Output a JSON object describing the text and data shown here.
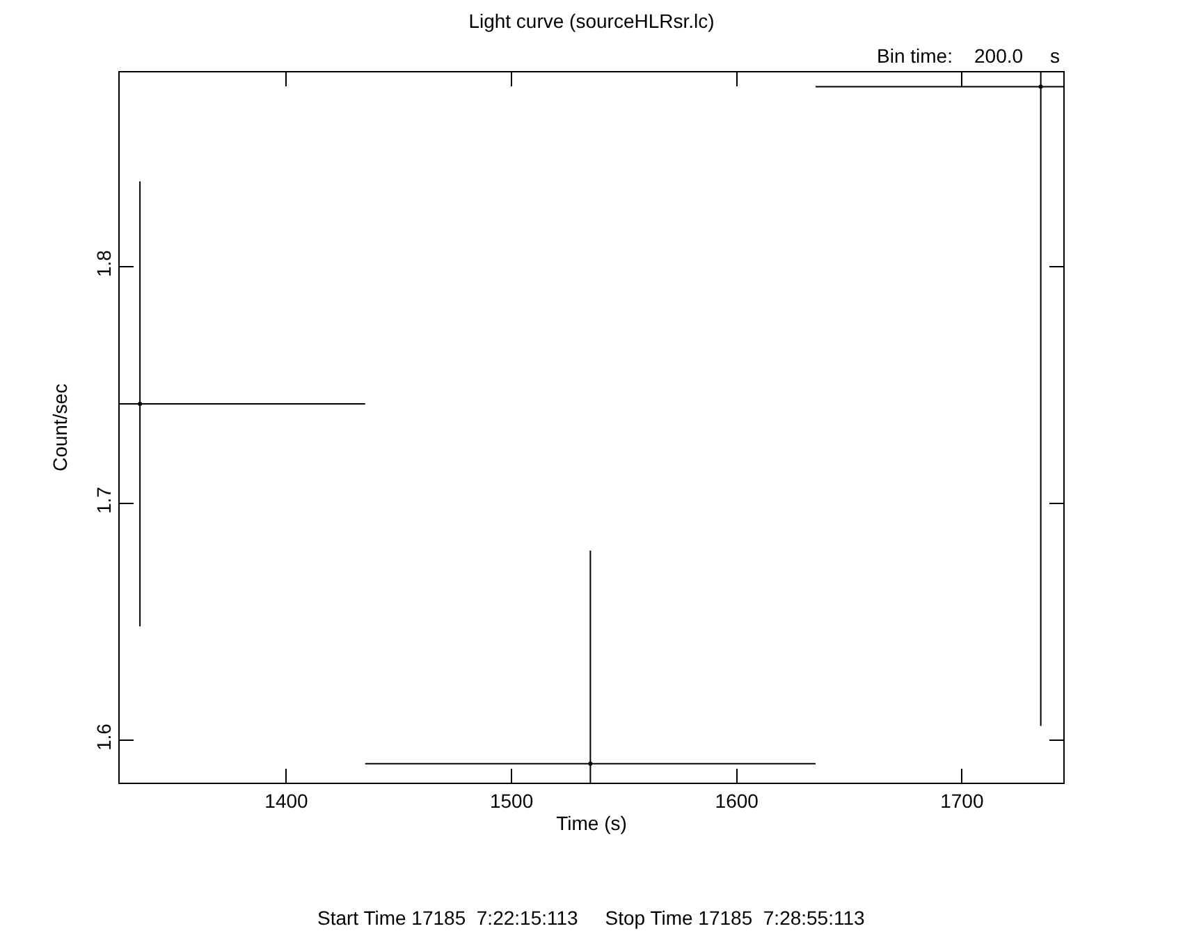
{
  "chart_data": {
    "type": "scatter",
    "title": "Light curve (sourceHLRsr.lc)",
    "xlabel": "Time (s)",
    "ylabel": "Count/sec",
    "x": [
      1335,
      1535,
      1735
    ],
    "values": [
      1.742,
      1.59,
      1.876
    ],
    "errors": [
      [
        1.648,
        1.836
      ],
      [
        1.582,
        1.68
      ],
      [
        1.606,
        1.882
      ]
    ],
    "xerrors": [
      [
        1326,
        1435
      ],
      [
        1435,
        1635
      ],
      [
        1635,
        1745
      ]
    ],
    "color": "#000000",
    "marker": "none",
    "xlim": [
      1326,
      1745
    ],
    "xticks": [
      1400,
      1500,
      1600,
      1700
    ],
    "ylim": [
      1.582,
      1.882
    ],
    "yticks": [
      1.6,
      1.7,
      1.8
    ],
    "grid": false,
    "annotations": [
      "Bin time:    200.0     s",
      "Start Time 17185  7:22:15:113     Stop Time 17185  7:28:55:113"
    ]
  }
}
